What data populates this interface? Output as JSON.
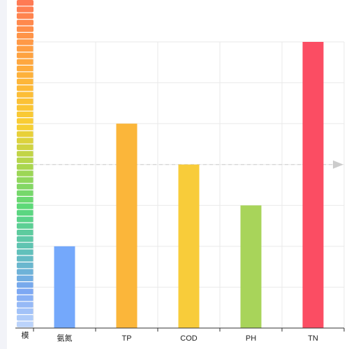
{
  "chart_data": {
    "type": "bar",
    "categories": [
      "氨氮",
      "TP",
      "COD",
      "PH",
      "TN"
    ],
    "values": [
      1,
      2.5,
      2,
      1.5,
      3.5
    ],
    "ylim": [
      0,
      3.5
    ],
    "reference_line": 2,
    "grid": true,
    "colors": {
      "bars": [
        "#74a8fb",
        "#fbb63a",
        "#f8cc3a",
        "#a8d45a",
        "#fb4d63"
      ],
      "grid": "#e9e9e9",
      "axis": "#333333",
      "reference_line": "#cccccc"
    },
    "legend": {
      "partial_label": "模",
      "gradient": [
        "#ff7a54",
        "#ff9a45",
        "#fdb838",
        "#f8cf33",
        "#a9d64f",
        "#5ad97a",
        "#5fc2b6",
        "#7aa6f3",
        "#c7dcfc"
      ]
    }
  }
}
